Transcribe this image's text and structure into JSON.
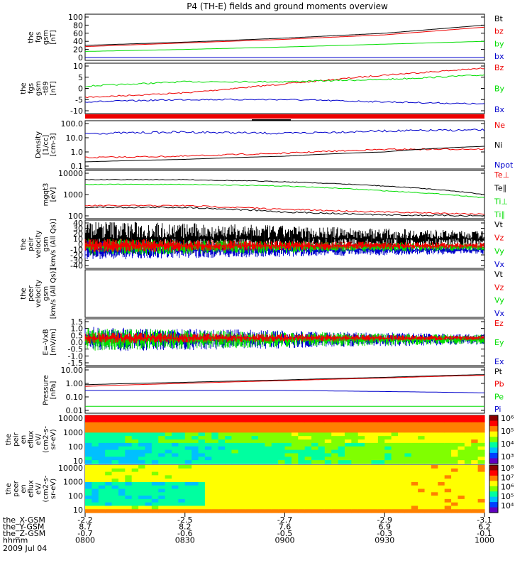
{
  "title": "P4 (TH-E) fields and ground moments overview",
  "colors": {
    "black": "#000000",
    "red": "#ee0000",
    "green": "#00dd00",
    "blue": "#0000cc"
  },
  "panels": [
    {
      "id": "fgs-gsm",
      "ylabel": [
        "the",
        "fgs",
        "gsm",
        "[nT]"
      ],
      "ticks": [
        "100",
        "80",
        "60",
        "40",
        "20",
        "0"
      ],
      "legend": [
        {
          "t": "Bt",
          "c": "black"
        },
        {
          "t": "bz",
          "c": "red"
        },
        {
          "t": "by",
          "c": "green"
        },
        {
          "t": "bx",
          "c": "blue"
        }
      ]
    },
    {
      "id": "fgs-gse",
      "ylabel": [
        "the",
        "fgs",
        "gsm",
        "-t89",
        "[nT]"
      ],
      "ticks": [
        "10",
        "5",
        "0",
        "-5",
        "-10"
      ],
      "legend": [
        {
          "t": "Bz",
          "c": "red"
        },
        {
          "t": "By",
          "c": "green"
        },
        {
          "t": "Bx",
          "c": "blue"
        }
      ]
    },
    {
      "id": "density",
      "ylabel": [
        "Density",
        "[1/cc]",
        "[cm-3]"
      ],
      "ticks": [
        "100.0",
        "10.0",
        "1.0",
        "0.1"
      ],
      "legend": [
        {
          "t": "Ne",
          "c": "red"
        },
        {
          "t": "Ni",
          "c": "black"
        },
        {
          "t": "Npot",
          "c": "blue"
        }
      ]
    },
    {
      "id": "temperature",
      "ylabel": [
        "mgqt3",
        "[eV]"
      ],
      "ticks": [
        "10000",
        "1000",
        "100"
      ],
      "legend": [
        {
          "t": "Te⊥",
          "c": "red"
        },
        {
          "t": "Te∥",
          "c": "black"
        },
        {
          "t": "Ti⊥",
          "c": "green"
        },
        {
          "t": "Ti∥",
          "c": "green"
        }
      ]
    },
    {
      "id": "peir-velocity",
      "ylabel": [
        "the",
        "peir",
        "velocity",
        "gsm",
        "[km/s (All Qs)]"
      ],
      "ticks": [
        "40",
        "30",
        "20",
        "10",
        "0",
        "-10",
        "-20",
        "-30",
        "-40"
      ],
      "legend": [
        {
          "t": "Vt",
          "c": "black"
        },
        {
          "t": "Vz",
          "c": "red"
        },
        {
          "t": "Vy",
          "c": "green"
        },
        {
          "t": "Vx",
          "c": "blue"
        }
      ]
    },
    {
      "id": "peer-velocity",
      "ylabel": [
        "the",
        "peer",
        "velocity",
        "gsm",
        "[km/s (All Qs)]"
      ],
      "ticks": [],
      "legend": [
        {
          "t": "Vt",
          "c": "black"
        },
        {
          "t": "Vz",
          "c": "red"
        },
        {
          "t": "Vy",
          "c": "green"
        },
        {
          "t": "Vx",
          "c": "blue"
        }
      ]
    },
    {
      "id": "efield",
      "ylabel": [
        "E=-VxB",
        "[mV/m]"
      ],
      "ticks": [
        "1.5",
        "1.0",
        "0.5",
        "0.0",
        "-0.5",
        "-1.0",
        "-1.5"
      ],
      "legend": [
        {
          "t": "Ez",
          "c": "red"
        },
        {
          "t": "Ey",
          "c": "green"
        },
        {
          "t": "Ex",
          "c": "blue"
        }
      ]
    },
    {
      "id": "pressure",
      "ylabel": [
        "Pressure",
        "[nPa]"
      ],
      "ticks": [
        "10.00",
        "1.00",
        "0.10",
        "0.01"
      ],
      "legend": [
        {
          "t": "Pt",
          "c": "black"
        },
        {
          "t": "Pb",
          "c": "red"
        },
        {
          "t": "Pe",
          "c": "green"
        },
        {
          "t": "Pi",
          "c": "blue"
        }
      ]
    },
    {
      "id": "peir-spec",
      "ylabel": [
        "the",
        "peir",
        "en",
        "eflux",
        "eV/",
        "(cm2-s-",
        "sr-eV)"
      ],
      "ticks": [
        "10000",
        "1000",
        "100",
        "10"
      ],
      "cbar": [
        "10⁶",
        "10⁵",
        "10⁴",
        "10³"
      ]
    },
    {
      "id": "peer-spec",
      "ylabel": [
        "the",
        "peer",
        "en",
        "eflux",
        "eV/",
        "(cm2-s-",
        "sr-eV)"
      ],
      "ticks": [
        "10000",
        "1000",
        "100",
        "10"
      ],
      "cbar": [
        "10⁸",
        "10⁷",
        "10⁶",
        "10⁵",
        "10⁴"
      ]
    }
  ],
  "xaxis": {
    "rows": [
      {
        "label": "the_X-GSM",
        "values": [
          "-2.2",
          "-2.5",
          "-2.7",
          "-2.9",
          "-3.1"
        ]
      },
      {
        "label": "the_Y-GSM",
        "values": [
          "8.7",
          "8.2",
          "7.6",
          "6.9",
          "6.2"
        ]
      },
      {
        "label": "the_Z-GSM",
        "values": [
          "-0.7",
          "-0.6",
          "-0.5",
          "-0.3",
          "-0.1"
        ]
      },
      {
        "label": "hhmm",
        "values": [
          "0800",
          "0830",
          "0900",
          "0930",
          "1000"
        ]
      }
    ],
    "date": "2009 Jul 04"
  },
  "chart_data": {
    "type": "line",
    "title": "P4 (TH-E) fields and ground moments overview",
    "x_hhmm": [
      "0800",
      "0830",
      "0900",
      "0930",
      "1000"
    ],
    "series": [
      {
        "panel": "fgs-gsm",
        "name": "Bt",
        "values": [
          30,
          38,
          48,
          60,
          80
        ]
      },
      {
        "panel": "fgs-gsm",
        "name": "bz",
        "values": [
          27,
          36,
          45,
          56,
          75
        ]
      },
      {
        "panel": "fgs-gsm",
        "name": "by",
        "values": [
          15,
          20,
          26,
          33,
          40
        ]
      },
      {
        "panel": "fgs-gsm",
        "name": "bx",
        "values": [
          0,
          0,
          0,
          0,
          0
        ]
      },
      {
        "panel": "fgs-gse",
        "name": "Bz",
        "values": [
          -4,
          -2,
          2,
          6,
          9
        ]
      },
      {
        "panel": "fgs-gse",
        "name": "By",
        "values": [
          1,
          3,
          3,
          4,
          6
        ]
      },
      {
        "panel": "fgs-gse",
        "name": "Bx",
        "values": [
          -6,
          -5,
          -5,
          -6,
          -7
        ]
      },
      {
        "panel": "density",
        "name": "Ne",
        "values": [
          0.4,
          0.5,
          0.8,
          1.5,
          1.6
        ]
      },
      {
        "panel": "density",
        "name": "Ni",
        "values": [
          0.2,
          0.3,
          0.5,
          1,
          2.5
        ]
      },
      {
        "panel": "density",
        "name": "Npot",
        "values": [
          20,
          25,
          20,
          30,
          35
        ]
      },
      {
        "panel": "temperature",
        "name": "Te⊥",
        "values": [
          300,
          300,
          200,
          150,
          120
        ]
      },
      {
        "panel": "temperature",
        "name": "Te∥",
        "values": [
          250,
          250,
          150,
          110,
          100
        ]
      },
      {
        "panel": "temperature",
        "name": "Ti⊥",
        "values": [
          3000,
          3000,
          2500,
          1500,
          700
        ]
      },
      {
        "panel": "temperature",
        "name": "Ti∥",
        "values": [
          5000,
          5000,
          4000,
          2500,
          1000
        ]
      },
      {
        "panel": "pressure",
        "name": "Pt",
        "values": [
          0.8,
          1.2,
          1.8,
          2.8,
          4.5
        ]
      },
      {
        "panel": "pressure",
        "name": "Pb",
        "values": [
          0.6,
          1.0,
          1.6,
          2.5,
          4.0
        ]
      },
      {
        "panel": "pressure",
        "name": "Pe",
        "values": [
          0.02,
          0.02,
          0.02,
          0.02,
          0.02
        ]
      },
      {
        "panel": "pressure",
        "name": "Pi",
        "values": [
          0.3,
          0.3,
          0.3,
          0.25,
          0.2
        ]
      }
    ]
  }
}
